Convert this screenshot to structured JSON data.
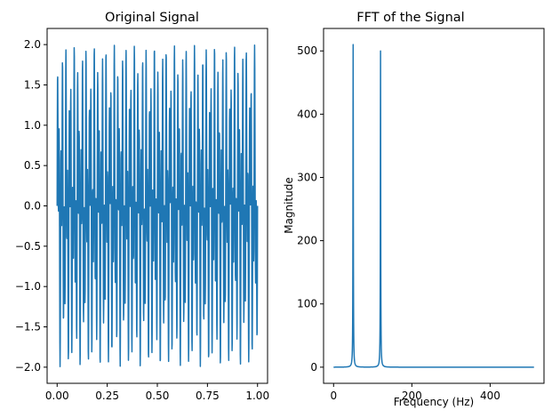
{
  "chart_data": [
    {
      "type": "line",
      "title": "Original Signal",
      "xlabel": "",
      "ylabel": "",
      "xlim": [
        -0.05,
        1.05
      ],
      "ylim": [
        -2.2,
        2.2
      ],
      "x_ticks": [
        0.0,
        0.25,
        0.5,
        0.75,
        1.0
      ],
      "x_tick_labels": [
        "0.00",
        "0.25",
        "0.50",
        "0.75",
        "1.00"
      ],
      "y_ticks": [
        -2.0,
        -1.5,
        -1.0,
        -0.5,
        0.0,
        0.5,
        1.0,
        1.5,
        2.0
      ],
      "y_tick_labels": [
        "−2.0",
        "−1.5",
        "−1.0",
        "−0.5",
        "0.0",
        "0.5",
        "1.0",
        "1.5",
        "2.0"
      ],
      "signal": {
        "components": [
          {
            "frequency_hz": 50,
            "amplitude": 1.0
          },
          {
            "frequency_hz": 120,
            "amplitude": 1.0
          }
        ],
        "x_start": 0.0,
        "x_end": 1.0,
        "samples": 1024
      },
      "color": "#1f77b4",
      "grid": false
    },
    {
      "type": "line",
      "title": "FFT of the Signal",
      "xlabel": "Frequency (Hz)",
      "ylabel": "Magnitude",
      "xlim": [
        -25.6,
        537.6
      ],
      "ylim": [
        -25.5,
        535.5
      ],
      "x_ticks": [
        0,
        200,
        400
      ],
      "x_tick_labels": [
        "0",
        "200",
        "400"
      ],
      "y_ticks": [
        0,
        100,
        200,
        300,
        400,
        500
      ],
      "y_tick_labels": [
        "0",
        "100",
        "200",
        "300",
        "400",
        "500"
      ],
      "peaks": [
        {
          "frequency_hz": 50,
          "magnitude": 510
        },
        {
          "frequency_hz": 120,
          "magnitude": 500
        }
      ],
      "x_range": [
        0,
        512
      ],
      "color": "#1f77b4",
      "grid": false
    }
  ]
}
